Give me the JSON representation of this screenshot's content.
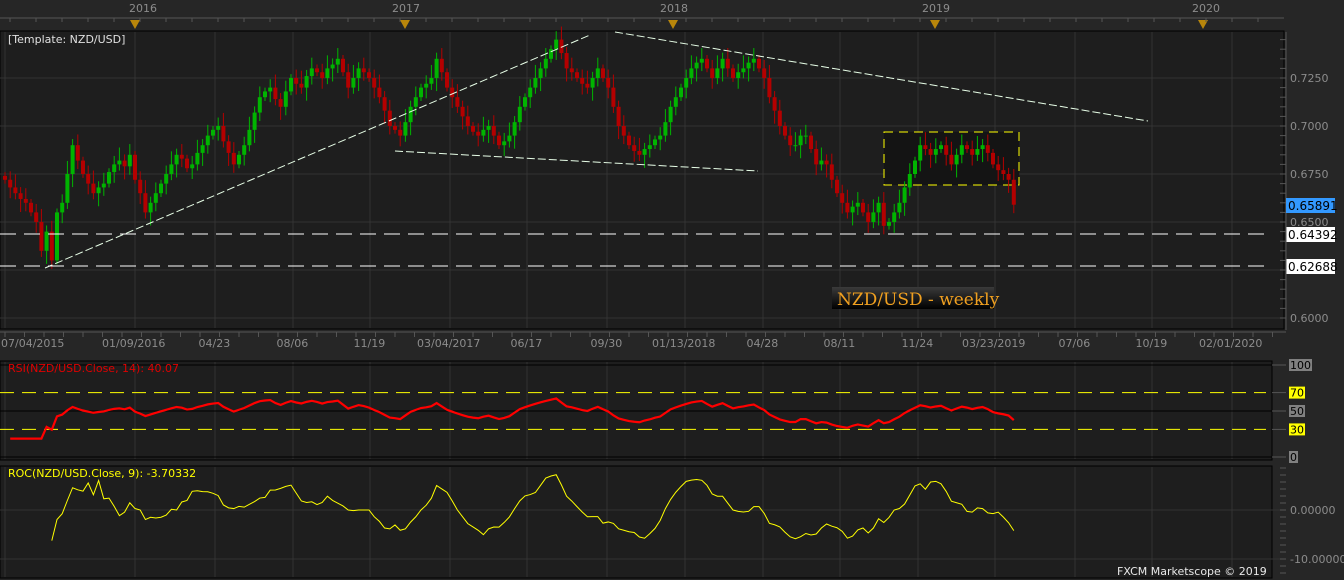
{
  "chart_data": {
    "type": "candlestick",
    "template_label": "[Template: NZD/USD]",
    "watermark_title": "NZD/USD - weekly",
    "copyright": "FXCM Marketscope © 2019",
    "year_labels": [
      "2016",
      "2017",
      "2018",
      "2019",
      "2020"
    ],
    "date_ticks": [
      "07/04/2015",
      "01/09/2016",
      "04/23",
      "08/06",
      "11/19",
      "03/04/2017",
      "06/17",
      "09/30",
      "01/13/2018",
      "04/28",
      "08/11",
      "11/24",
      "03/23/2019",
      "07/06",
      "10/19",
      "02/01/2020"
    ],
    "price_axis": {
      "ticks": [
        "0.7250",
        "0.7000",
        "0.6750",
        "0.6500",
        "0.6000"
      ],
      "range": [
        0.6,
        0.75
      ]
    },
    "current_price": "0.65891",
    "horizontal_levels": [
      {
        "value": "0.64392"
      },
      {
        "value": "0.62688"
      }
    ],
    "weekly_closes": [
      0.672,
      0.668,
      0.665,
      0.662,
      0.66,
      0.655,
      0.65,
      0.635,
      0.645,
      0.63,
      0.655,
      0.66,
      0.675,
      0.69,
      0.682,
      0.675,
      0.67,
      0.665,
      0.668,
      0.67,
      0.676,
      0.68,
      0.682,
      0.679,
      0.685,
      0.672,
      0.665,
      0.655,
      0.66,
      0.665,
      0.67,
      0.675,
      0.68,
      0.685,
      0.683,
      0.678,
      0.68,
      0.686,
      0.69,
      0.695,
      0.698,
      0.7,
      0.692,
      0.686,
      0.68,
      0.685,
      0.69,
      0.698,
      0.707,
      0.715,
      0.718,
      0.72,
      0.714,
      0.71,
      0.718,
      0.725,
      0.722,
      0.72,
      0.726,
      0.73,
      0.728,
      0.725,
      0.73,
      0.732,
      0.735,
      0.728,
      0.72,
      0.725,
      0.73,
      0.728,
      0.725,
      0.72,
      0.715,
      0.708,
      0.7,
      0.698,
      0.695,
      0.702,
      0.71,
      0.715,
      0.72,
      0.722,
      0.725,
      0.735,
      0.728,
      0.72,
      0.715,
      0.71,
      0.705,
      0.7,
      0.697,
      0.695,
      0.698,
      0.7,
      0.695,
      0.69,
      0.692,
      0.695,
      0.702,
      0.71,
      0.715,
      0.72,
      0.725,
      0.73,
      0.735,
      0.74,
      0.745,
      0.738,
      0.73,
      0.728,
      0.725,
      0.722,
      0.72,
      0.725,
      0.73,
      0.725,
      0.72,
      0.71,
      0.7,
      0.695,
      0.69,
      0.687,
      0.685,
      0.688,
      0.69,
      0.693,
      0.695,
      0.702,
      0.71,
      0.715,
      0.72,
      0.725,
      0.73,
      0.733,
      0.735,
      0.73,
      0.725,
      0.73,
      0.735,
      0.73,
      0.725,
      0.728,
      0.73,
      0.733,
      0.735,
      0.73,
      0.725,
      0.715,
      0.708,
      0.7,
      0.695,
      0.69,
      0.69,
      0.695,
      0.695,
      0.688,
      0.68,
      0.682,
      0.68,
      0.672,
      0.665,
      0.66,
      0.655,
      0.658,
      0.66,
      0.655,
      0.65,
      0.655,
      0.66,
      0.648,
      0.65,
      0.655,
      0.66,
      0.668,
      0.675,
      0.682,
      0.69,
      0.688,
      0.685,
      0.688,
      0.69,
      0.685,
      0.68,
      0.685,
      0.69,
      0.688,
      0.685,
      0.688,
      0.69,
      0.686,
      0.68,
      0.677,
      0.675,
      0.672,
      0.659
    ],
    "rsi": {
      "label": "RSI(NZD/USD.Close, 14): 40.07",
      "period": 14,
      "levels": [
        "100",
        "70",
        "50",
        "30",
        "0"
      ]
    },
    "roc": {
      "label": "ROC(NZD/USD.Close, 9): -3.70332",
      "period": 9,
      "ticks": [
        "0.00000",
        "-10.00000"
      ]
    },
    "colors": {
      "up": "#00b400",
      "down": "#b40000",
      "rsi": "#ff0000",
      "roc": "#ffff00",
      "current_price_bg": "#3399ff",
      "box": "#ffff00",
      "event_marker": "#b8860b"
    }
  }
}
